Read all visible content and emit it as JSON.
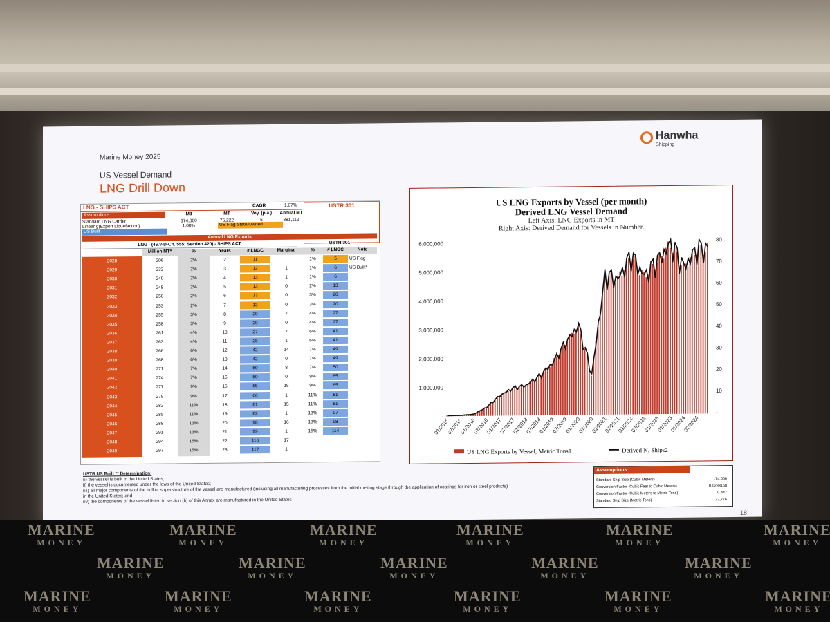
{
  "slide": {
    "event": "Marine Money 2025",
    "subtitle": "US Vessel Demand",
    "title": "LNG Drill Down",
    "brand": "Hanwha",
    "brand_sub": "Shipping",
    "page": "18"
  },
  "table": {
    "heading": "LNG - SHIPS ACT",
    "cagr_label": "CAGR",
    "cagr_value": "1.67%",
    "ustr_title": "USTR 301",
    "assumptions_label": "Assumptions",
    "assump_cols": [
      "M3",
      "MT",
      "Voy. (p.a.)",
      "Annual MT"
    ],
    "carrier_label": "Standard LNG Carrier",
    "carrier_values": [
      "174,000",
      "76,222",
      "5",
      "381,112"
    ],
    "linear_label": "Linear g(Export Liquefaction)",
    "linear_value": "1.00%",
    "us_flag_owned": "US Flag State/Owned",
    "us_built": "US Built",
    "annual_title": "Annual LNG Exports",
    "lng_row": "LNG - (46.V-D-Ch. 555; Section 420) - SHIPS ACT",
    "ustr_sub": "USTR 301",
    "headers": [
      "Million MT*",
      "%",
      "Years",
      "# LNGC",
      "Marginal",
      "%",
      "# LNGC",
      "Note"
    ],
    "notes": [
      "US Flag",
      "US Built*"
    ],
    "rows": [
      [
        "2028",
        "206",
        "2%",
        "2",
        "11",
        "",
        "1%",
        "5"
      ],
      [
        "2029",
        "232",
        "2%",
        "3",
        "12",
        "1",
        "1%",
        "6"
      ],
      [
        "2030",
        "240",
        "2%",
        "4",
        "13",
        "1",
        "1%",
        "6"
      ],
      [
        "2031",
        "248",
        "2%",
        "5",
        "13",
        "0",
        "2%",
        "13"
      ],
      [
        "2032",
        "250",
        "2%",
        "6",
        "13",
        "0",
        "3%",
        "20"
      ],
      [
        "2033",
        "253",
        "2%",
        "7",
        "13",
        "0",
        "3%",
        "20"
      ],
      [
        "2034",
        "255",
        "3%",
        "8",
        "20",
        "7",
        "4%",
        "27"
      ],
      [
        "2035",
        "258",
        "3%",
        "9",
        "20",
        "0",
        "4%",
        "27"
      ],
      [
        "2036",
        "261",
        "4%",
        "10",
        "27",
        "7",
        "6%",
        "41"
      ],
      [
        "2037",
        "263",
        "4%",
        "11",
        "28",
        "1",
        "6%",
        "41"
      ],
      [
        "2038",
        "266",
        "6%",
        "12",
        "42",
        "14",
        "7%",
        "49"
      ],
      [
        "2039",
        "268",
        "6%",
        "13",
        "42",
        "0",
        "7%",
        "49"
      ],
      [
        "2040",
        "271",
        "7%",
        "14",
        "50",
        "8",
        "7%",
        "50"
      ],
      [
        "2041",
        "274",
        "7%",
        "15",
        "50",
        "0",
        "9%",
        "65"
      ],
      [
        "2042",
        "277",
        "9%",
        "16",
        "65",
        "15",
        "9%",
        "65"
      ],
      [
        "2043",
        "279",
        "9%",
        "17",
        "66",
        "1",
        "11%",
        "81"
      ],
      [
        "2044",
        "282",
        "11%",
        "18",
        "81",
        "15",
        "11%",
        "81"
      ],
      [
        "2045",
        "285",
        "11%",
        "19",
        "82",
        "1",
        "13%",
        "97"
      ],
      [
        "2046",
        "288",
        "13%",
        "20",
        "98",
        "16",
        "13%",
        "98"
      ],
      [
        "2047",
        "291",
        "13%",
        "21",
        "99",
        "1",
        "15%",
        "114"
      ],
      [
        "2048",
        "294",
        "15%",
        "22",
        "116",
        "17",
        "",
        ""
      ],
      [
        "2049",
        "297",
        "15%",
        "23",
        "117",
        "1",
        "",
        ""
      ]
    ]
  },
  "notes": {
    "heading": "USTR US Built ** Determination:",
    "lines": [
      "(i) the vessel is built in the United States;",
      "ii) the vessel is documented under the laws of the United States;",
      "(iii) all major components of the hull or superstructure of the vessel are  manufactured (including all manufacturing processes from the initial melting stage through the application of coatings for iron or steel products)",
      "in the United States; and",
      "(iv) the components of the vessel listed in section (h) of this Annex are manufactured in the United States"
    ]
  },
  "assumptions2": {
    "label": "Assumptions",
    "rows": [
      [
        "Standard Ship Size (Cubic Meters)",
        "174,000"
      ],
      [
        "Conversion Factor (Cubic Feet to Cubic Meters)",
        "0.0283168"
      ],
      [
        "Conversion Factor (Cubic Meters to Metric Tons)",
        "0.447"
      ],
      [
        "Standard Ship Size (Metric Tons)",
        "77,776"
      ]
    ]
  },
  "backdrop_logo": {
    "main": "MARINE",
    "sub": "MONEY"
  },
  "chart_data": {
    "type": "bar",
    "title": "US LNG Exports by Vessel (per month)",
    "title2": "Derived LNG Vessel Demand",
    "subtitle1": "Left Axis: LNG Exports in MT",
    "subtitle2": "Right Axis: Derived Demand for Vessels in Number.",
    "left_ticks": [
      "6,000,000",
      "5,000,000",
      "4,000,000",
      "3,000,000",
      "2,000,000",
      "1,000,000",
      "-"
    ],
    "right_ticks": [
      "80",
      "70",
      "60",
      "50",
      "40",
      "30",
      "20",
      "10",
      "-"
    ],
    "ylim_left": [
      0,
      6000000
    ],
    "ylim_right": [
      0,
      80
    ],
    "x_labels": [
      "01/2015",
      "07/2015",
      "01/2016",
      "07/2016",
      "01/2017",
      "07/2017",
      "01/2018",
      "07/2018",
      "01/2019",
      "07/2019",
      "01/2020",
      "07/2020",
      "01/2021",
      "07/2021",
      "01/2022",
      "07/2022",
      "01/2023",
      "07/2023",
      "01/2024",
      "07/2024"
    ],
    "legend": [
      "US LNG Exports by Vessel, Metric Tons1",
      "Derived N. Ships2"
    ],
    "bar_color": "#c0392b",
    "line_color": "#111111",
    "semiannual_mt": [
      20000,
      30000,
      60000,
      300000,
      700000,
      950000,
      1050000,
      1350000,
      1800000,
      2500000,
      3100000,
      1400000,
      4800000,
      4700000,
      5500000,
      4800000,
      5300000,
      5900000,
      5100000,
      5700000
    ]
  }
}
